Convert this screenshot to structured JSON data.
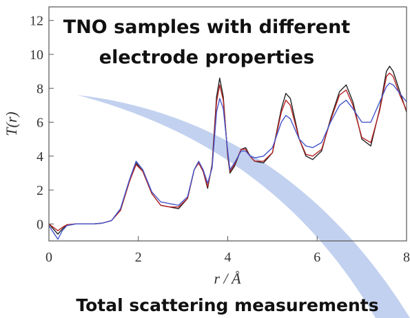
{
  "chart_data": {
    "type": "line",
    "title": [
      "TNO samples with different",
      "electrode properties"
    ],
    "caption": "Total scattering measurements",
    "y_label": "T(r)",
    "x_label": "r / Å",
    "x": [
      0,
      0.1,
      0.2,
      0.3,
      0.4,
      0.6,
      0.8,
      1.0,
      1.2,
      1.4,
      1.6,
      1.8,
      1.95,
      2.1,
      2.3,
      2.5,
      2.7,
      2.9,
      3.1,
      3.25,
      3.35,
      3.45,
      3.55,
      3.65,
      3.75,
      3.82,
      3.9,
      4.0,
      4.05,
      4.15,
      4.3,
      4.4,
      4.5,
      4.6,
      4.8,
      5.0,
      5.2,
      5.3,
      5.4,
      5.6,
      5.75,
      5.9,
      6.1,
      6.3,
      6.5,
      6.65,
      6.8,
      7.0,
      7.2,
      7.4,
      7.55,
      7.62,
      7.7,
      7.85,
      8.0
    ],
    "series": [
      {
        "color": "#222222",
        "values": [
          0,
          -0.3,
          -0.6,
          -0.3,
          -0.05,
          0,
          0,
          0,
          0.05,
          0.2,
          0.8,
          2.5,
          3.6,
          3.1,
          1.8,
          1.1,
          1.0,
          0.9,
          1.5,
          3.2,
          3.6,
          3.1,
          2.1,
          3.5,
          7.5,
          8.6,
          7.5,
          4.0,
          3.0,
          3.4,
          4.4,
          4.5,
          4.0,
          3.7,
          3.6,
          4.2,
          6.8,
          7.7,
          7.4,
          5.0,
          4.0,
          3.8,
          4.3,
          6.2,
          7.8,
          8.2,
          7.2,
          5.0,
          4.6,
          6.8,
          9.0,
          9.3,
          9.0,
          7.8,
          6.6
        ]
      },
      {
        "color": "#b82222",
        "values": [
          0,
          -0.2,
          -0.4,
          -0.2,
          -0.05,
          0,
          0,
          0,
          0.05,
          0.2,
          0.8,
          2.5,
          3.5,
          3.1,
          1.8,
          1.1,
          1.0,
          1.0,
          1.5,
          3.2,
          3.6,
          3.1,
          2.2,
          3.4,
          7.2,
          8.2,
          7.3,
          4.1,
          3.1,
          3.5,
          4.4,
          4.4,
          4.0,
          3.7,
          3.7,
          4.2,
          6.6,
          7.3,
          7.0,
          5.0,
          4.1,
          4.0,
          4.4,
          6.1,
          7.6,
          7.9,
          7.0,
          5.1,
          4.8,
          6.7,
          8.7,
          8.9,
          8.7,
          7.6,
          6.7
        ]
      },
      {
        "color": "#4455cc",
        "values": [
          -0.1,
          -0.5,
          -0.9,
          -0.4,
          -0.1,
          0,
          0,
          0,
          0.05,
          0.2,
          0.9,
          2.6,
          3.7,
          3.2,
          1.9,
          1.3,
          1.2,
          1.1,
          1.6,
          3.2,
          3.7,
          3.2,
          2.4,
          3.3,
          6.6,
          7.4,
          6.8,
          4.3,
          3.2,
          3.6,
          4.3,
          4.3,
          4.0,
          3.9,
          4.0,
          4.5,
          6.0,
          6.4,
          6.2,
          5.0,
          4.6,
          4.5,
          4.8,
          6.0,
          7.0,
          7.3,
          6.8,
          6.0,
          6.0,
          7.2,
          8.1,
          8.3,
          8.2,
          7.7,
          7.2
        ]
      }
    ],
    "xlim": [
      0,
      8
    ],
    "ylim": [
      -1,
      12.8
    ],
    "xticks": [
      0,
      2,
      4,
      6,
      8
    ],
    "yticks": [
      0,
      2,
      4,
      6,
      8,
      10,
      12
    ]
  }
}
